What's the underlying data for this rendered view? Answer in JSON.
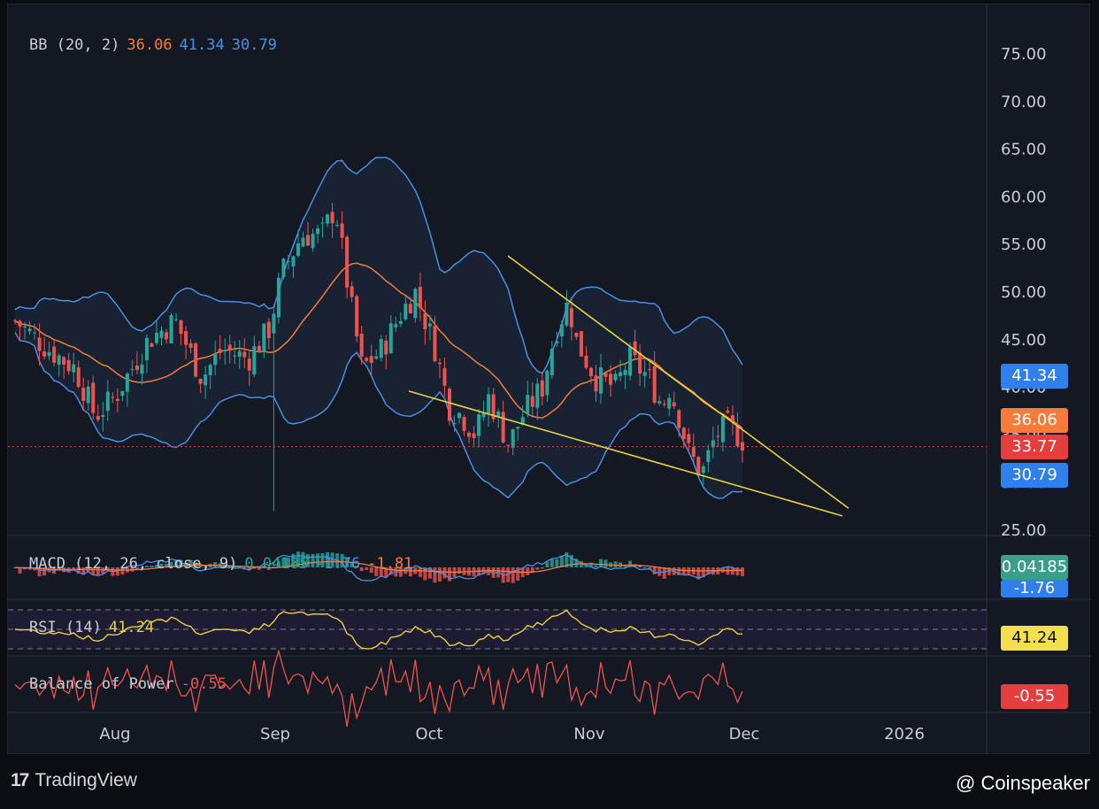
{
  "chart_data": {
    "type": "candlestick",
    "title": "",
    "x_axis": {
      "ticks": [
        "Aug",
        "Sep",
        "Oct",
        "Nov",
        "Dec",
        "2026"
      ]
    },
    "y_axis": {
      "ticks": [
        "75.00",
        "70.00",
        "65.00",
        "60.00",
        "55.00",
        "50.00",
        "45.00",
        "40.00",
        "35.00",
        "30.00",
        "25.00"
      ],
      "range": [
        25,
        77
      ]
    },
    "last_price": 33.77,
    "indicators": {
      "bollinger": {
        "label": "BB (20, 2)",
        "basis": "36.06",
        "upper": "41.34",
        "lower": "30.79"
      },
      "macd": {
        "label": "MACD (12, 26, close, 9)",
        "histogram": "0.04185",
        "macd": "-1.76",
        "signal": "-1.81"
      },
      "rsi": {
        "label": "RSI (14)",
        "value": "41.24"
      },
      "balance_of_power": {
        "label": "Balance of Power",
        "value": "-0.55"
      }
    },
    "price_tags": [
      "41.34",
      "36.06",
      "33.77",
      "30.79"
    ],
    "panel_tags": {
      "macd_hist": "0.04185",
      "macd": "-1.76",
      "rsi": "41.24",
      "bop": "-0.55"
    },
    "pattern": "falling wedge (trendlines)",
    "colors": {
      "up": "#26a69a",
      "down": "#ef5350",
      "basis": "#f57c3a",
      "band": "#4a8fe0",
      "trend": "#e8d33f",
      "rsi": "#e8d33f",
      "bop": "#ef5350",
      "macd": "#4a8fe0",
      "signal": "#f57c3a"
    }
  },
  "footer": {
    "brand_left": "TradingView",
    "brand_right": "@ Coinspeaker"
  }
}
